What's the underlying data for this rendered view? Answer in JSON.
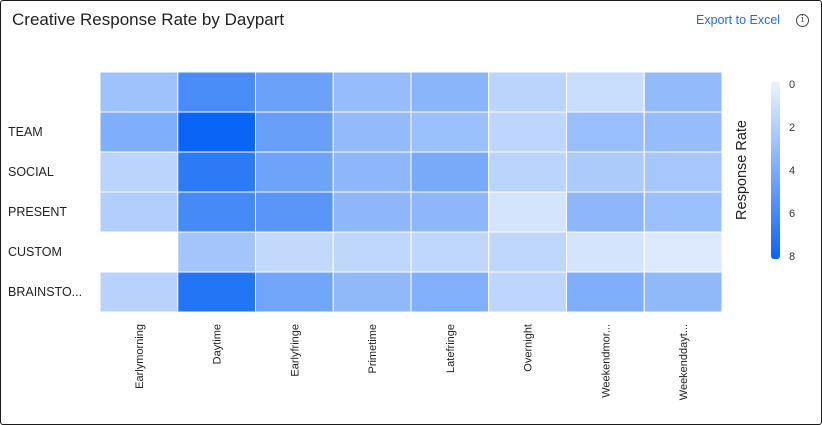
{
  "header": {
    "title": "Creative Response Rate by Daypart",
    "export_label": "Export to Excel",
    "info_glyph": "i",
    "info_icon": "info-icon"
  },
  "chart_data": {
    "type": "heatmap",
    "title": "Creative Response Rate by Daypart",
    "x_categories": [
      "Earlymorning",
      "Daytime",
      "Earlyfringe",
      "Primetime",
      "Latefringe",
      "Overnight",
      "Weekendmor...",
      "Weekenddayt..."
    ],
    "y_categories": [
      "",
      "TEAM",
      "SOCIAL",
      "PRESENT",
      "CUSTOM",
      "BRAINSTO..."
    ],
    "values": [
      [
        2.8,
        5.8,
        4.6,
        3.1,
        3.5,
        1.8,
        1.3,
        3.2
      ],
      [
        3.9,
        8.0,
        4.7,
        3.2,
        2.9,
        1.7,
        3.0,
        3.1
      ],
      [
        1.8,
        6.8,
        4.5,
        3.4,
        4.1,
        1.8,
        2.3,
        2.5
      ],
      [
        2.1,
        5.9,
        5.2,
        3.4,
        3.4,
        0.9,
        3.4,
        2.9
      ],
      [
        null,
        2.6,
        1.5,
        1.6,
        1.6,
        1.6,
        0.9,
        0.6
      ],
      [
        1.9,
        7.1,
        4.4,
        3.3,
        3.8,
        1.7,
        3.9,
        3.3
      ]
    ],
    "colorbar": {
      "label": "Response Rate",
      "min": 0,
      "max": 8,
      "ticks": [
        0,
        2,
        4,
        6,
        8
      ],
      "low_color": "#eef4fe",
      "high_color": "#0a64f5"
    },
    "missing_color": "#ffffff",
    "grid": false
  }
}
